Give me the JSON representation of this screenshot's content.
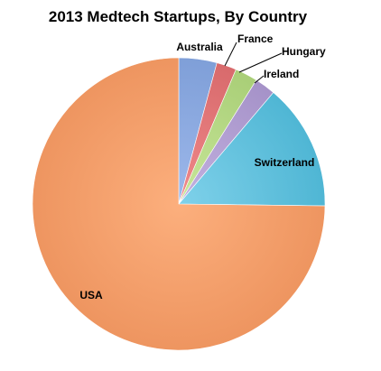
{
  "chart_data": {
    "type": "pie",
    "title": "2013 Medtech Startups, By Country",
    "slices": [
      {
        "label": "Australia",
        "value": 4.2,
        "color": "#9DB8EB",
        "edge": "#7F9FD8"
      },
      {
        "label": "France",
        "value": 2.2,
        "color": "#F0898A",
        "edge": "#D86A6C"
      },
      {
        "label": "Hungary",
        "value": 2.5,
        "color": "#C8E79A",
        "edge": "#A9CE77"
      },
      {
        "label": "Ireland",
        "value": 2.3,
        "color": "#C3B1E0",
        "edge": "#A592C8"
      },
      {
        "label": "Switzerland",
        "value": 14.0,
        "color": "#7FD1EA",
        "edge": "#4FB6D4"
      },
      {
        "label": "USA",
        "value": 74.8,
        "color": "#FCAF7D",
        "edge": "#EE9560"
      }
    ]
  }
}
